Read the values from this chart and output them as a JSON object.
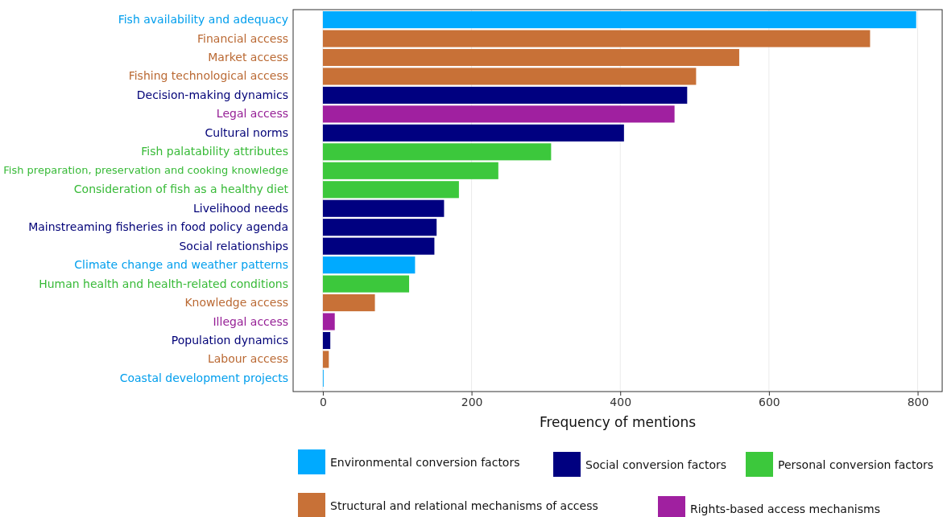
{
  "chart_data": {
    "type": "bar",
    "orientation": "horizontal",
    "xlabel": "Frequency of mentions",
    "categories": [
      "Fish availability and adequacy",
      "Financial access",
      "Market access",
      "Fishing technological access",
      "Decision-making dynamics",
      "Legal access",
      "Cultural norms",
      "Fish palatability attributes",
      "Fish preparation, preservation and cooking knowledge",
      "Consideration of fish as a healthy diet",
      "Livelihood needs",
      "Mainstreaming fisheries in food policy agenda",
      "Social relationships",
      "Climate change and weather patterns",
      "Human health and health-related conditions",
      "Knowledge access",
      "Illegal access",
      "Population dynamics",
      "Labour access",
      "Coastal development projects"
    ],
    "series": [
      {
        "name": "Environmental conversion factors",
        "color": "#00aaff",
        "values": [
          798,
          null,
          null,
          null,
          null,
          null,
          null,
          null,
          null,
          null,
          null,
          null,
          null,
          124,
          null,
          null,
          null,
          null,
          null,
          1
        ]
      },
      {
        "name": "Social conversion factors",
        "color": "#000080",
        "values": [
          null,
          null,
          null,
          null,
          490,
          null,
          405,
          null,
          null,
          null,
          163,
          153,
          150,
          null,
          null,
          null,
          null,
          10,
          null,
          null
        ]
      },
      {
        "name": "Personal conversion factors",
        "color": "#3cc83c",
        "values": [
          null,
          null,
          null,
          null,
          null,
          null,
          null,
          307,
          236,
          183,
          null,
          null,
          null,
          null,
          116,
          null,
          null,
          null,
          null,
          null
        ]
      },
      {
        "name": "Structural and relational mechanisms of access",
        "color": "#c87137",
        "values": [
          null,
          736,
          560,
          502,
          null,
          null,
          null,
          null,
          null,
          null,
          null,
          null,
          null,
          null,
          null,
          70,
          null,
          null,
          8,
          null
        ]
      },
      {
        "name": "Rights-based access mechanisms",
        "color": "#a020a0",
        "values": [
          null,
          null,
          null,
          null,
          null,
          473,
          null,
          null,
          null,
          null,
          null,
          null,
          null,
          null,
          null,
          null,
          16,
          null,
          null,
          null
        ]
      }
    ],
    "xlim": [
      -40,
      833
    ],
    "xticks": [
      0,
      200,
      400,
      600,
      800
    ],
    "grid": "x",
    "legend": "bottom"
  }
}
